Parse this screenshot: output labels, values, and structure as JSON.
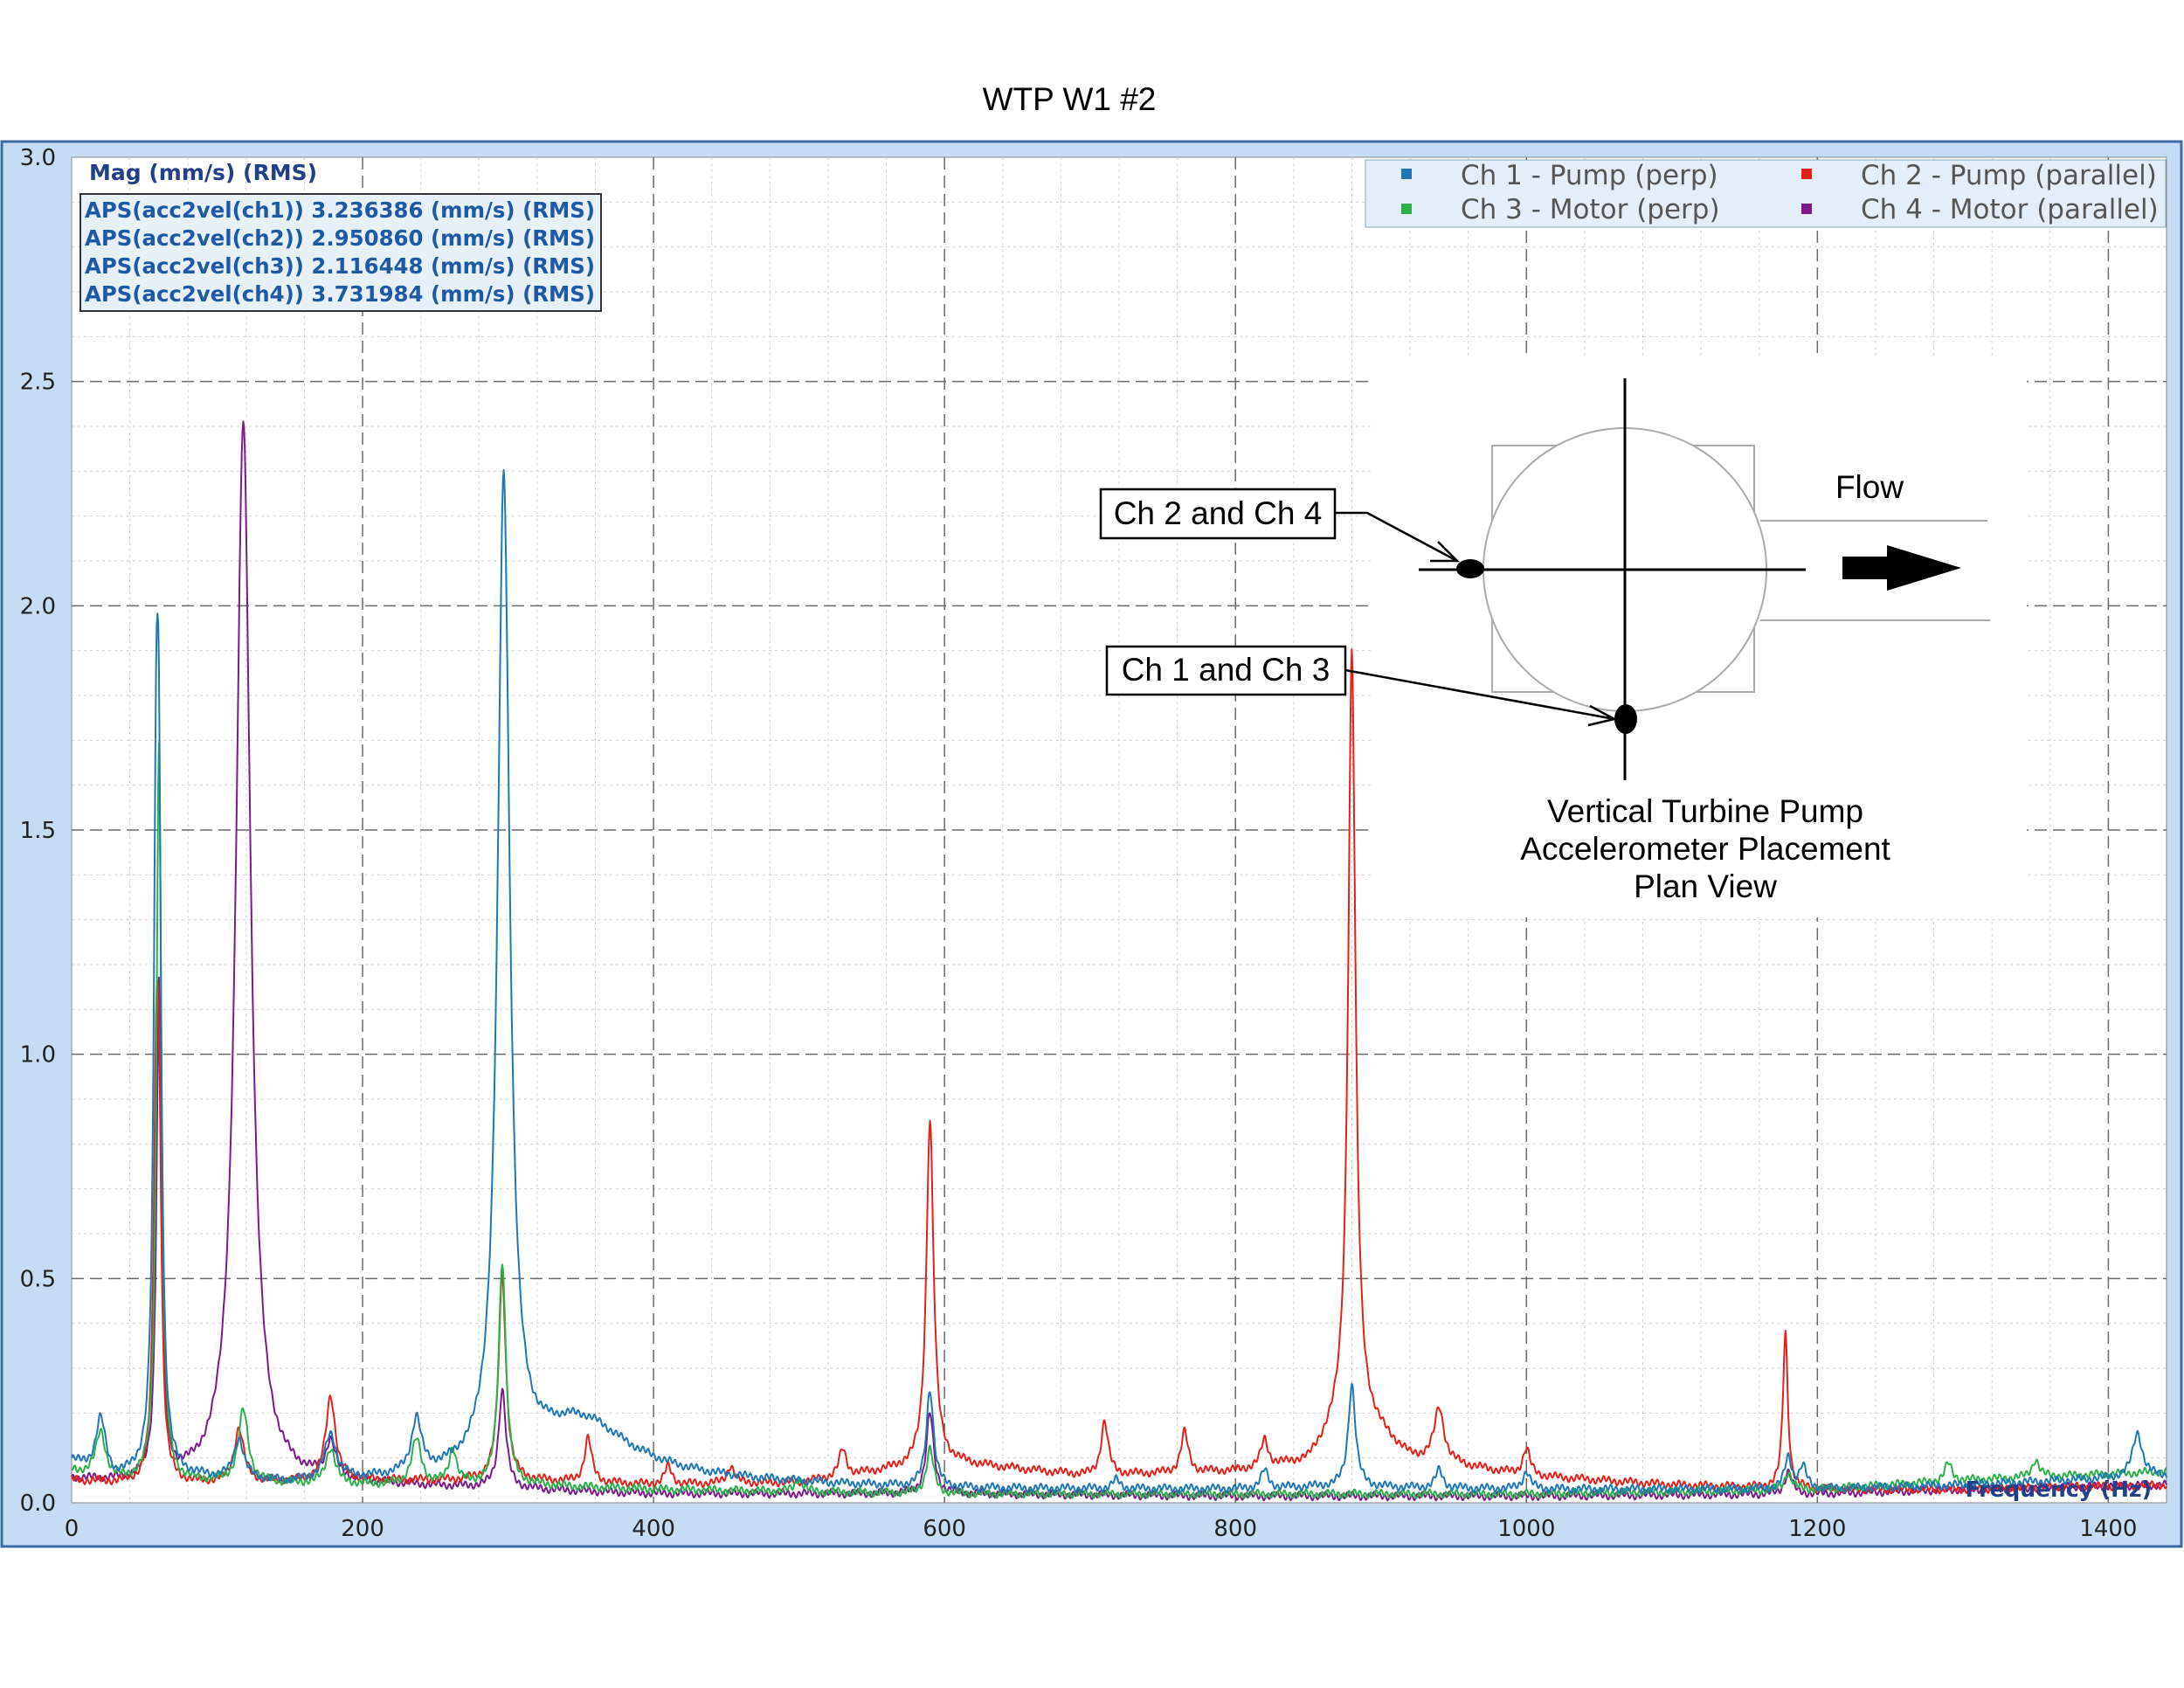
{
  "chart_data": {
    "type": "line",
    "title": "WTP W1 #2",
    "ylabel": "Mag (mm/s) (RMS)",
    "xlabel": "Frequency (Hz)",
    "xlim": [
      0,
      1440
    ],
    "ylim": [
      0,
      3.0
    ],
    "x_ticks": [
      "0",
      "200",
      "400",
      "600",
      "800",
      "1000",
      "1200",
      "1400"
    ],
    "y_ticks": [
      "0.0",
      "0.5",
      "1.0",
      "1.5",
      "2.0",
      "2.5",
      "3.0"
    ],
    "grid": true,
    "legend_position": "top-right",
    "info_lines": [
      "APS(acc2vel(ch1)) 3.236386 (mm/s) (RMS)",
      "APS(acc2vel(ch2)) 2.950860 (mm/s) (RMS)",
      "APS(acc2vel(ch3)) 2.116448 (mm/s) (RMS)",
      "APS(acc2vel(ch4)) 3.731984 (mm/s) (RMS)"
    ],
    "series": [
      {
        "name": "Ch 1 - Pump (perp)",
        "color": "#1f77b4",
        "baseline": [
          [
            0,
            0.09
          ],
          [
            30,
            0.05
          ],
          [
            50,
            0.06
          ],
          [
            150,
            0.04
          ],
          [
            290,
            0.05
          ],
          [
            400,
            0.05
          ],
          [
            500,
            0.04
          ],
          [
            600,
            0.03
          ],
          [
            800,
            0.03
          ],
          [
            860,
            0.035
          ],
          [
            1000,
            0.03
          ],
          [
            1200,
            0.03
          ],
          [
            1300,
            0.04
          ],
          [
            1440,
            0.06
          ]
        ],
        "peaks": [
          [
            20,
            0.12,
            4
          ],
          [
            58,
            1.2,
            2
          ],
          [
            60,
            1.2,
            2
          ],
          [
            115,
            0.09,
            4
          ],
          [
            178,
            0.1,
            5
          ],
          [
            237,
            0.12,
            4
          ],
          [
            297,
            2.2,
            5
          ],
          [
            350,
            0.13,
            40
          ],
          [
            590,
            0.22,
            3
          ],
          [
            718,
            0.02,
            3
          ],
          [
            820,
            0.04,
            3
          ],
          [
            880,
            0.23,
            3
          ],
          [
            940,
            0.04,
            3
          ],
          [
            1000,
            0.04,
            3
          ],
          [
            1180,
            0.07,
            3
          ],
          [
            1190,
            0.05,
            3
          ],
          [
            1420,
            0.1,
            4
          ]
        ]
      },
      {
        "name": "Ch 2 - Pump (parallel)",
        "color": "#e32119",
        "baseline": [
          [
            0,
            0.05
          ],
          [
            50,
            0.04
          ],
          [
            200,
            0.05
          ],
          [
            300,
            0.05
          ],
          [
            400,
            0.04
          ],
          [
            500,
            0.045
          ],
          [
            580,
            0.08
          ],
          [
            600,
            0.09
          ],
          [
            700,
            0.06
          ],
          [
            800,
            0.07
          ],
          [
            850,
            0.09
          ],
          [
            880,
            0.2
          ],
          [
            920,
            0.1
          ],
          [
            1000,
            0.06
          ],
          [
            1100,
            0.04
          ],
          [
            1200,
            0.03
          ],
          [
            1300,
            0.03
          ],
          [
            1440,
            0.04
          ]
        ],
        "peaks": [
          [
            58,
            0.7,
            2
          ],
          [
            60,
            0.7,
            2
          ],
          [
            115,
            0.12,
            4
          ],
          [
            178,
            0.19,
            4
          ],
          [
            296,
            0.46,
            3
          ],
          [
            355,
            0.1,
            3
          ],
          [
            410,
            0.04,
            3
          ],
          [
            453,
            0.04,
            3
          ],
          [
            530,
            0.06,
            3
          ],
          [
            590,
            0.77,
            3
          ],
          [
            710,
            0.12,
            3
          ],
          [
            765,
            0.09,
            3
          ],
          [
            820,
            0.06,
            3
          ],
          [
            880,
            1.7,
            3
          ],
          [
            940,
            0.12,
            4
          ],
          [
            1000,
            0.06,
            3
          ],
          [
            1178,
            0.35,
            2
          ]
        ]
      },
      {
        "name": "Ch 3 - Motor (perp)",
        "color": "#2bb04a",
        "baseline": [
          [
            0,
            0.07
          ],
          [
            30,
            0.05
          ],
          [
            200,
            0.04
          ],
          [
            300,
            0.04
          ],
          [
            400,
            0.03
          ],
          [
            600,
            0.02
          ],
          [
            800,
            0.02
          ],
          [
            1000,
            0.02
          ],
          [
            1200,
            0.03
          ],
          [
            1300,
            0.05
          ],
          [
            1440,
            0.07
          ]
        ],
        "peaks": [
          [
            20,
            0.1,
            4
          ],
          [
            60,
            1.65,
            2
          ],
          [
            118,
            0.16,
            4
          ],
          [
            178,
            0.08,
            4
          ],
          [
            237,
            0.1,
            4
          ],
          [
            262,
            0.08,
            3
          ],
          [
            296,
            0.5,
            3
          ],
          [
            500,
            0.03,
            3
          ],
          [
            590,
            0.1,
            3
          ],
          [
            1180,
            0.04,
            3
          ],
          [
            1290,
            0.04,
            3
          ],
          [
            1350,
            0.04,
            3
          ]
        ]
      },
      {
        "name": "Ch 4 - Motor (parallel)",
        "color": "#7b1b8a",
        "baseline": [
          [
            0,
            0.05
          ],
          [
            50,
            0.04
          ],
          [
            200,
            0.04
          ],
          [
            300,
            0.03
          ],
          [
            400,
            0.02
          ],
          [
            600,
            0.02
          ],
          [
            800,
            0.015
          ],
          [
            1000,
            0.015
          ],
          [
            1200,
            0.02
          ],
          [
            1300,
            0.03
          ],
          [
            1440,
            0.04
          ]
        ],
        "peaks": [
          [
            60,
            1.1,
            2
          ],
          [
            118,
            2.37,
            6
          ],
          [
            178,
            0.08,
            4
          ],
          [
            296,
            0.22,
            3
          ],
          [
            590,
            0.18,
            3
          ],
          [
            1180,
            0.05,
            3
          ]
        ]
      }
    ]
  },
  "annotation": {
    "label_a": "Ch 2 and Ch 4",
    "label_b": "Ch 1 and Ch 3",
    "flow": "Flow",
    "caption": [
      "Vertical Turbine Pump",
      "Accelerometer Placement",
      "Plan View"
    ]
  }
}
